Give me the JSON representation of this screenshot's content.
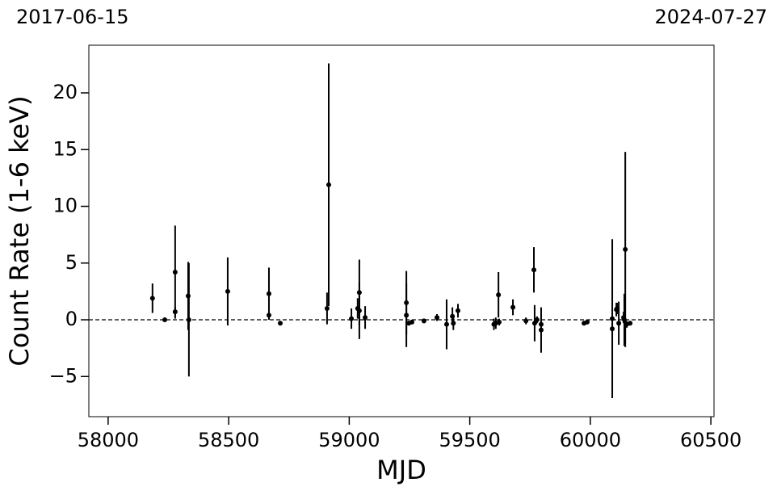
{
  "chart_data": {
    "type": "errorbar",
    "date_start": "2017-06-15",
    "date_end": "2024-07-27",
    "xlabel": "MJD",
    "ylabel": "Count Rate (1-6 keV)",
    "color": "#000000",
    "hline": 0,
    "xlim": [
      57920,
      60513
    ],
    "ylim": [
      -8.54,
      24.2
    ],
    "xticks": [
      58000,
      58500,
      59000,
      59500,
      60000,
      60500
    ],
    "yticks": [
      {
        "value": -5,
        "label": "−5"
      },
      0,
      5,
      10,
      15,
      20
    ],
    "x": [
      58184,
      58235,
      58278,
      58278,
      58332,
      58335,
      58496,
      58667,
      58667,
      58714,
      58908,
      58915,
      59009,
      59035,
      59042,
      59042,
      59066,
      59237,
      59237,
      59247,
      59260,
      59310,
      59364,
      59404,
      59428,
      59432,
      59451,
      59600,
      59608,
      59619,
      59622,
      59679,
      59733,
      59766,
      59769,
      59779,
      59796,
      59796,
      59974,
      59987,
      60091,
      60091,
      60108,
      60111,
      60118,
      60138,
      60141,
      60145,
      60151,
      60165
    ],
    "values": [
      1.9,
      0,
      4.2,
      0.7,
      2.1,
      0,
      2.5,
      2.3,
      0.4,
      -0.3,
      1.0,
      11.9,
      0.1,
      1.0,
      2.4,
      0.8,
      0.2,
      1.5,
      0.4,
      -0.3,
      -0.2,
      -0.1,
      0.2,
      -0.4,
      0.3,
      -0.3,
      0.8,
      -0.4,
      -0.3,
      2.2,
      -0.2,
      1.1,
      -0.1,
      4.4,
      -0.3,
      0,
      -0.4,
      -0.9,
      -0.3,
      -0.2,
      0.1,
      -0.8,
      0.9,
      1.0,
      -0.3,
      0.2,
      0,
      6.2,
      -0.4,
      -0.3
    ],
    "errors": [
      1.3,
      0.1,
      4.1,
      0.4,
      3.0,
      5.0,
      3.0,
      2.3,
      0.4,
      0.1,
      1.4,
      10.7,
      0.9,
      0.9,
      2.9,
      2.5,
      1.0,
      2.8,
      2.8,
      0.2,
      0.2,
      0.2,
      0.3,
      2.2,
      0.8,
      0.6,
      0.6,
      0.5,
      0.5,
      2.0,
      0.3,
      0.7,
      0.3,
      2.0,
      1.6,
      0.3,
      0.9,
      2.0,
      0.2,
      0.1,
      7.0,
      0.5,
      0.6,
      0.5,
      1.9,
      0.5,
      2.3,
      8.6,
      0.3,
      0.2
    ]
  }
}
